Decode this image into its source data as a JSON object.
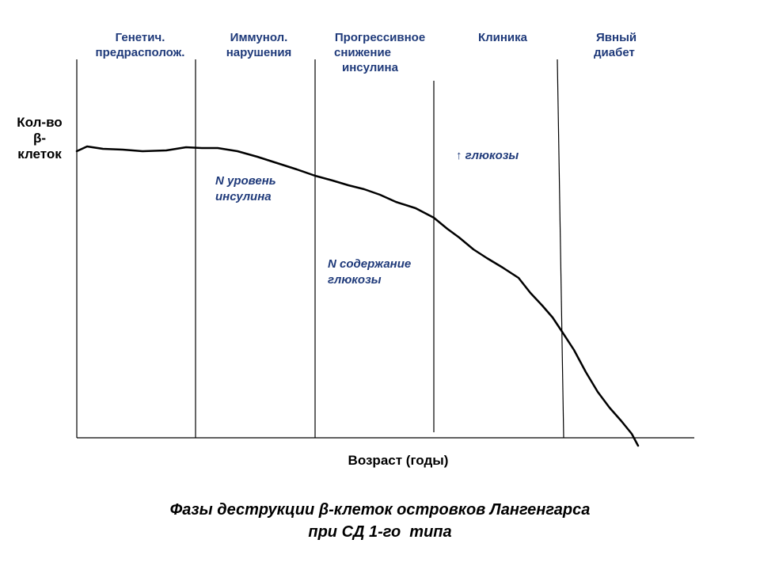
{
  "phases": [
    {
      "lines": [
        "Генетич.",
        "предрасполож."
      ]
    },
    {
      "lines": [
        "Иммунол.",
        "нарушения"
      ]
    },
    {
      "lines": [
        "Прогрессивное",
        "снижение",
        "инсулина"
      ]
    },
    {
      "lines": [
        "Клиника"
      ]
    },
    {
      "lines": [
        "Явный",
        "диабет"
      ]
    }
  ],
  "y_axis_label": [
    "Кол-во",
    "β-",
    "клеток"
  ],
  "x_axis_label": "Возраст (годы)",
  "notes": {
    "insulin_level": [
      "N уровень",
      "инсулина"
    ],
    "glucose_content": [
      "N содержание",
      "глюкозы"
    ],
    "glucose_rise": "↑ глюкозы"
  },
  "caption": [
    "Фазы деструкции β-клеток островков Лангенгарса",
    "при СД 1-го  типа"
  ],
  "colors": {
    "label_text": "#1f3a7a",
    "lines": "#000000",
    "background": "#ffffff"
  }
}
